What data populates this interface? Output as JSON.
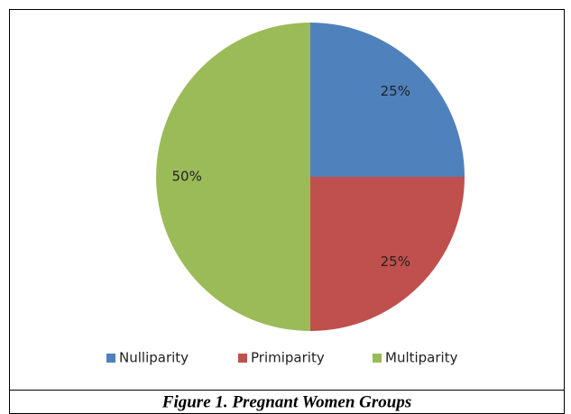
{
  "chart_data": {
    "type": "pie",
    "categories": [
      "Nulliparity",
      "Primiparity",
      "Multiparity"
    ],
    "values": [
      25,
      25,
      50
    ],
    "value_labels": [
      "25%",
      "25%",
      "50%"
    ],
    "colors": [
      "#4f81bd",
      "#c0504d",
      "#9bbb59"
    ],
    "legend": "bottom"
  },
  "caption": "Figure 1. Pregnant Women Groups"
}
